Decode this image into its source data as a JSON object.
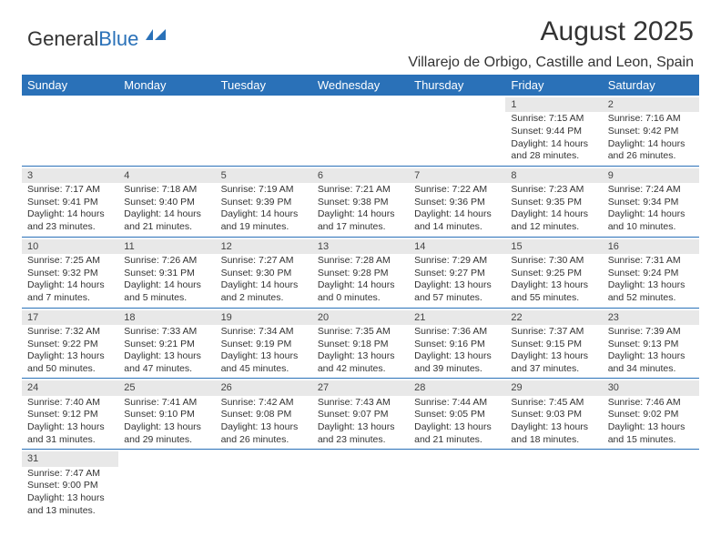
{
  "brand": {
    "part1": "General",
    "part2": "Blue"
  },
  "title": "August 2025",
  "subtitle": "Villarejo de Orbigo, Castille and Leon, Spain",
  "colors": {
    "header_bg": "#2a71b8",
    "daynum_bg": "#e8e8e8",
    "rule": "#2a71b8",
    "text": "#333333"
  },
  "weekdays": [
    "Sunday",
    "Monday",
    "Tuesday",
    "Wednesday",
    "Thursday",
    "Friday",
    "Saturday"
  ],
  "weeks": [
    [
      null,
      null,
      null,
      null,
      null,
      {
        "n": "1",
        "sr": "Sunrise: 7:15 AM",
        "ss": "Sunset: 9:44 PM",
        "d1": "Daylight: 14 hours",
        "d2": "and 28 minutes."
      },
      {
        "n": "2",
        "sr": "Sunrise: 7:16 AM",
        "ss": "Sunset: 9:42 PM",
        "d1": "Daylight: 14 hours",
        "d2": "and 26 minutes."
      }
    ],
    [
      {
        "n": "3",
        "sr": "Sunrise: 7:17 AM",
        "ss": "Sunset: 9:41 PM",
        "d1": "Daylight: 14 hours",
        "d2": "and 23 minutes."
      },
      {
        "n": "4",
        "sr": "Sunrise: 7:18 AM",
        "ss": "Sunset: 9:40 PM",
        "d1": "Daylight: 14 hours",
        "d2": "and 21 minutes."
      },
      {
        "n": "5",
        "sr": "Sunrise: 7:19 AM",
        "ss": "Sunset: 9:39 PM",
        "d1": "Daylight: 14 hours",
        "d2": "and 19 minutes."
      },
      {
        "n": "6",
        "sr": "Sunrise: 7:21 AM",
        "ss": "Sunset: 9:38 PM",
        "d1": "Daylight: 14 hours",
        "d2": "and 17 minutes."
      },
      {
        "n": "7",
        "sr": "Sunrise: 7:22 AM",
        "ss": "Sunset: 9:36 PM",
        "d1": "Daylight: 14 hours",
        "d2": "and 14 minutes."
      },
      {
        "n": "8",
        "sr": "Sunrise: 7:23 AM",
        "ss": "Sunset: 9:35 PM",
        "d1": "Daylight: 14 hours",
        "d2": "and 12 minutes."
      },
      {
        "n": "9",
        "sr": "Sunrise: 7:24 AM",
        "ss": "Sunset: 9:34 PM",
        "d1": "Daylight: 14 hours",
        "d2": "and 10 minutes."
      }
    ],
    [
      {
        "n": "10",
        "sr": "Sunrise: 7:25 AM",
        "ss": "Sunset: 9:32 PM",
        "d1": "Daylight: 14 hours",
        "d2": "and 7 minutes."
      },
      {
        "n": "11",
        "sr": "Sunrise: 7:26 AM",
        "ss": "Sunset: 9:31 PM",
        "d1": "Daylight: 14 hours",
        "d2": "and 5 minutes."
      },
      {
        "n": "12",
        "sr": "Sunrise: 7:27 AM",
        "ss": "Sunset: 9:30 PM",
        "d1": "Daylight: 14 hours",
        "d2": "and 2 minutes."
      },
      {
        "n": "13",
        "sr": "Sunrise: 7:28 AM",
        "ss": "Sunset: 9:28 PM",
        "d1": "Daylight: 14 hours",
        "d2": "and 0 minutes."
      },
      {
        "n": "14",
        "sr": "Sunrise: 7:29 AM",
        "ss": "Sunset: 9:27 PM",
        "d1": "Daylight: 13 hours",
        "d2": "and 57 minutes."
      },
      {
        "n": "15",
        "sr": "Sunrise: 7:30 AM",
        "ss": "Sunset: 9:25 PM",
        "d1": "Daylight: 13 hours",
        "d2": "and 55 minutes."
      },
      {
        "n": "16",
        "sr": "Sunrise: 7:31 AM",
        "ss": "Sunset: 9:24 PM",
        "d1": "Daylight: 13 hours",
        "d2": "and 52 minutes."
      }
    ],
    [
      {
        "n": "17",
        "sr": "Sunrise: 7:32 AM",
        "ss": "Sunset: 9:22 PM",
        "d1": "Daylight: 13 hours",
        "d2": "and 50 minutes."
      },
      {
        "n": "18",
        "sr": "Sunrise: 7:33 AM",
        "ss": "Sunset: 9:21 PM",
        "d1": "Daylight: 13 hours",
        "d2": "and 47 minutes."
      },
      {
        "n": "19",
        "sr": "Sunrise: 7:34 AM",
        "ss": "Sunset: 9:19 PM",
        "d1": "Daylight: 13 hours",
        "d2": "and 45 minutes."
      },
      {
        "n": "20",
        "sr": "Sunrise: 7:35 AM",
        "ss": "Sunset: 9:18 PM",
        "d1": "Daylight: 13 hours",
        "d2": "and 42 minutes."
      },
      {
        "n": "21",
        "sr": "Sunrise: 7:36 AM",
        "ss": "Sunset: 9:16 PM",
        "d1": "Daylight: 13 hours",
        "d2": "and 39 minutes."
      },
      {
        "n": "22",
        "sr": "Sunrise: 7:37 AM",
        "ss": "Sunset: 9:15 PM",
        "d1": "Daylight: 13 hours",
        "d2": "and 37 minutes."
      },
      {
        "n": "23",
        "sr": "Sunrise: 7:39 AM",
        "ss": "Sunset: 9:13 PM",
        "d1": "Daylight: 13 hours",
        "d2": "and 34 minutes."
      }
    ],
    [
      {
        "n": "24",
        "sr": "Sunrise: 7:40 AM",
        "ss": "Sunset: 9:12 PM",
        "d1": "Daylight: 13 hours",
        "d2": "and 31 minutes."
      },
      {
        "n": "25",
        "sr": "Sunrise: 7:41 AM",
        "ss": "Sunset: 9:10 PM",
        "d1": "Daylight: 13 hours",
        "d2": "and 29 minutes."
      },
      {
        "n": "26",
        "sr": "Sunrise: 7:42 AM",
        "ss": "Sunset: 9:08 PM",
        "d1": "Daylight: 13 hours",
        "d2": "and 26 minutes."
      },
      {
        "n": "27",
        "sr": "Sunrise: 7:43 AM",
        "ss": "Sunset: 9:07 PM",
        "d1": "Daylight: 13 hours",
        "d2": "and 23 minutes."
      },
      {
        "n": "28",
        "sr": "Sunrise: 7:44 AM",
        "ss": "Sunset: 9:05 PM",
        "d1": "Daylight: 13 hours",
        "d2": "and 21 minutes."
      },
      {
        "n": "29",
        "sr": "Sunrise: 7:45 AM",
        "ss": "Sunset: 9:03 PM",
        "d1": "Daylight: 13 hours",
        "d2": "and 18 minutes."
      },
      {
        "n": "30",
        "sr": "Sunrise: 7:46 AM",
        "ss": "Sunset: 9:02 PM",
        "d1": "Daylight: 13 hours",
        "d2": "and 15 minutes."
      }
    ],
    [
      {
        "n": "31",
        "sr": "Sunrise: 7:47 AM",
        "ss": "Sunset: 9:00 PM",
        "d1": "Daylight: 13 hours",
        "d2": "and 13 minutes."
      },
      null,
      null,
      null,
      null,
      null,
      null
    ]
  ]
}
